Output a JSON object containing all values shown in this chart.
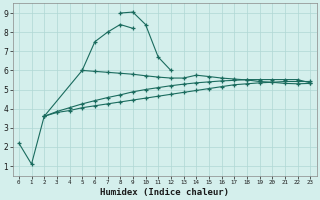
{
  "xlabel": "Humidex (Indice chaleur)",
  "bg_color": "#d4efec",
  "grid_color": "#b0d8d4",
  "line_color": "#1a6b5e",
  "xlim": [
    -0.5,
    23.5
  ],
  "ylim": [
    0.5,
    9.5
  ],
  "xticks": [
    0,
    1,
    2,
    3,
    4,
    5,
    6,
    7,
    8,
    9,
    10,
    11,
    12,
    13,
    14,
    15,
    16,
    17,
    18,
    19,
    20,
    21,
    22,
    23
  ],
  "yticks": [
    1,
    2,
    3,
    4,
    5,
    6,
    7,
    8,
    9
  ],
  "line1_x": [
    0,
    1,
    2,
    5,
    6,
    7,
    8,
    9
  ],
  "line1_y": [
    2.2,
    1.1,
    3.6,
    6.0,
    7.5,
    8.0,
    8.4,
    8.2
  ],
  "line2_x": [
    8,
    9,
    10,
    11,
    12
  ],
  "line2_y": [
    9.0,
    9.05,
    8.4,
    6.7,
    6.0
  ],
  "line3_x": [
    5,
    6,
    7,
    8,
    9,
    10,
    11,
    12,
    13,
    14,
    15,
    16,
    17,
    18,
    19,
    20,
    21,
    22,
    23
  ],
  "line3_y": [
    6.0,
    5.95,
    5.9,
    5.85,
    5.8,
    5.72,
    5.65,
    5.6,
    5.6,
    5.75,
    5.68,
    5.6,
    5.55,
    5.5,
    5.42,
    5.38,
    5.32,
    5.3,
    5.32
  ],
  "line4_x": [
    2,
    3,
    4,
    5,
    6,
    7,
    8,
    9,
    10,
    11,
    12,
    13,
    14,
    15,
    16,
    17,
    18,
    19,
    20,
    21,
    22,
    23
  ],
  "line4_y": [
    3.6,
    3.8,
    3.9,
    4.05,
    4.15,
    4.25,
    4.35,
    4.45,
    4.55,
    4.65,
    4.75,
    4.85,
    4.95,
    5.05,
    5.15,
    5.25,
    5.3,
    5.35,
    5.38,
    5.42,
    5.42,
    5.42
  ],
  "line5_x": [
    2,
    3,
    4,
    5,
    6,
    7,
    8,
    9,
    10,
    11,
    12,
    13,
    14,
    15,
    16,
    17,
    18,
    19,
    20,
    21,
    22,
    23
  ],
  "line5_y": [
    3.6,
    3.85,
    4.05,
    4.25,
    4.42,
    4.58,
    4.72,
    4.88,
    5.0,
    5.1,
    5.2,
    5.28,
    5.35,
    5.4,
    5.45,
    5.48,
    5.52,
    5.52,
    5.52,
    5.52,
    5.52,
    5.35
  ]
}
